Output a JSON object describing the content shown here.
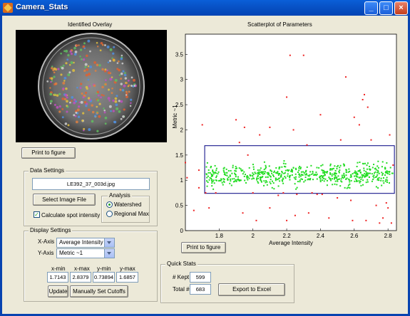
{
  "window": {
    "title": "Camera_Stats"
  },
  "overlay": {
    "title": "Identified Overlay",
    "print_label": "Print to figure"
  },
  "data_settings": {
    "title": "Data Settings",
    "filename": "LE392_37_003d.jpg",
    "select_label": "Select Image File",
    "calc_label": "Calculate spot intensity",
    "calc_checked": true,
    "analysis": {
      "title": "Analysis",
      "options": [
        "Watershed",
        "Regional Max"
      ],
      "selected": "Watershed"
    }
  },
  "display_settings": {
    "title": "Display Settings",
    "xaxis_label": "X-Axis",
    "xaxis_value": "Average Intensity",
    "yaxis_label": "Y-Axis",
    "yaxis_value": "Metric ~1",
    "limit_headers": [
      "x-min",
      "x-max",
      "y-min",
      "y-max"
    ],
    "limit_values": [
      "1.7143",
      "2.8379",
      "0.73894",
      "1.6857"
    ],
    "update_label": "Update",
    "manual_label": "Manually Set Cutoffs"
  },
  "quick_stats": {
    "title": "Quick Stats",
    "kept_label": "# Kept",
    "kept_value": "599",
    "total_label": "Total #",
    "total_value": "683",
    "export_label": "Export to Excel"
  },
  "scatter": {
    "print_label": "Print to figure",
    "colors": {
      "kept": "#22dd22",
      "rejected": "#ee2222",
      "box": "#000080"
    }
  },
  "chart_data": {
    "type": "scatter",
    "title": "Scatterplot of Parameters",
    "xlabel": "Average Intensity",
    "ylabel": "Metric ~1",
    "xlim": [
      1.6,
      2.85
    ],
    "ylim": [
      0,
      3.9
    ],
    "xticks": [
      "1.8",
      "2",
      "2.2",
      "2.4",
      "2.6",
      "2.8"
    ],
    "yticks": [
      "0",
      "0.5",
      "1",
      "1.5",
      "2",
      "2.5",
      "3",
      "3.5"
    ],
    "cutoff_box": {
      "x": [
        1.7143,
        2.8379
      ],
      "y": [
        0.73894,
        1.6857
      ]
    },
    "outliers": [
      [
        1.6,
        1.35
      ],
      [
        1.61,
        1.05
      ],
      [
        1.65,
        0.4
      ],
      [
        1.68,
        0.85
      ],
      [
        1.68,
        1.2
      ],
      [
        1.7,
        2.1
      ],
      [
        1.72,
        0.75
      ],
      [
        1.74,
        0.45
      ],
      [
        1.9,
        2.2
      ],
      [
        1.92,
        1.75
      ],
      [
        1.94,
        0.35
      ],
      [
        1.95,
        2.05
      ],
      [
        1.97,
        1.5
      ],
      [
        2.0,
        0.75
      ],
      [
        2.02,
        0.2
      ],
      [
        2.04,
        1.9
      ],
      [
        2.1,
        0.45
      ],
      [
        2.15,
        0.7
      ],
      [
        2.18,
        0.75
      ],
      [
        2.2,
        0.2
      ],
      [
        2.22,
        3.48
      ],
      [
        2.24,
        2.0
      ],
      [
        2.25,
        0.3
      ],
      [
        2.3,
        3.48
      ],
      [
        2.32,
        1.7
      ],
      [
        2.33,
        0.35
      ],
      [
        2.35,
        0.75
      ],
      [
        2.4,
        2.3
      ],
      [
        2.41,
        0.72
      ],
      [
        2.45,
        0.25
      ],
      [
        2.5,
        0.65
      ],
      [
        2.52,
        1.8
      ],
      [
        2.55,
        3.05
      ],
      [
        2.58,
        0.6
      ],
      [
        2.59,
        0.2
      ],
      [
        2.6,
        2.25
      ],
      [
        2.63,
        2.1
      ],
      [
        2.65,
        2.6
      ],
      [
        2.66,
        2.7
      ],
      [
        2.67,
        0.2
      ],
      [
        2.68,
        2.45
      ],
      [
        2.7,
        1.8
      ],
      [
        2.73,
        0.5
      ],
      [
        2.75,
        0.15
      ],
      [
        2.77,
        0.25
      ],
      [
        2.79,
        0.55
      ],
      [
        2.8,
        0.45
      ],
      [
        2.81,
        1.9
      ],
      [
        2.82,
        0.15
      ],
      [
        2.83,
        1.3
      ],
      [
        2.2,
        2.65
      ],
      [
        2.1,
        2.05
      ],
      [
        1.78,
        0.75
      ],
      [
        2.38,
        0.72
      ],
      [
        2.26,
        0.72
      ]
    ]
  }
}
